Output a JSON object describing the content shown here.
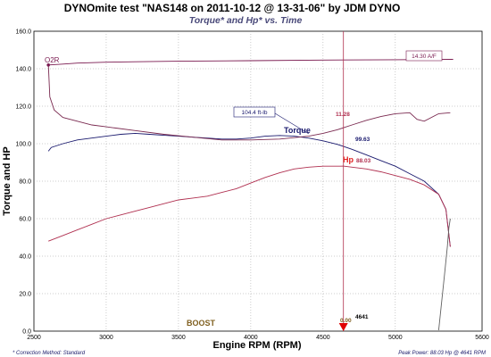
{
  "chart_data": {
    "type": "line",
    "title": "DYNOmite test \"NAS148 on 2011-10-12 @ 13-31-06\" by JDM DYNO",
    "subtitle": "Torque* and Hp* vs. Time",
    "xlabel": "Engine RPM (RPM)",
    "ylabel": "Torque and HP",
    "xlim": [
      2500,
      5600
    ],
    "ylim": [
      0,
      160
    ],
    "x_ticks": [
      "2500",
      "3000",
      "3500",
      "4000",
      "4500",
      "5000",
      "5600"
    ],
    "y_ticks": [
      "0.0",
      "20.0",
      "40.0",
      "60.0",
      "80.0",
      "100.0",
      "120.0",
      "140.0",
      "160.0"
    ],
    "grid": true,
    "series": [
      {
        "name": "Torque",
        "color": "#1a1a6e",
        "x": [
          2600,
          2620,
          2700,
          2800,
          2900,
          3000,
          3100,
          3200,
          3300,
          3400,
          3500,
          3600,
          3700,
          3800,
          3900,
          4000,
          4100,
          4200,
          4300,
          4400,
          4500,
          4600,
          4700,
          4800,
          4900,
          5000,
          5100,
          5200,
          5300,
          5350,
          5380
        ],
        "values": [
          96,
          98,
          100,
          102,
          103,
          104,
          105,
          105.5,
          105,
          104.5,
          104,
          103.5,
          103,
          102.5,
          102.5,
          103,
          104,
          104.4,
          104,
          103,
          101.5,
          99.6,
          97,
          94,
          91,
          88,
          84,
          80,
          73,
          65,
          45
        ]
      },
      {
        "name": "Hp",
        "color": "#b03050",
        "x": [
          2600,
          2700,
          2800,
          2900,
          3000,
          3100,
          3200,
          3300,
          3400,
          3500,
          3600,
          3700,
          3800,
          3900,
          4000,
          4100,
          4200,
          4300,
          4400,
          4500,
          4600,
          4640,
          4700,
          4800,
          4900,
          5000,
          5100,
          5200,
          5300,
          5350,
          5380
        ],
        "values": [
          48,
          51,
          54,
          57,
          60,
          62,
          64,
          66,
          68,
          70,
          71,
          72,
          74,
          76,
          79,
          82,
          84.5,
          86.5,
          87.5,
          88,
          88,
          88.03,
          87.5,
          86.5,
          85,
          83,
          81,
          78,
          73,
          65,
          45
        ]
      },
      {
        "name": "O2R",
        "color": "#7a1a50",
        "x": [
          2600,
          2700,
          2800,
          3000,
          3200,
          3500,
          4000,
          4500,
          5000,
          5400
        ],
        "values": [
          142,
          142.5,
          143,
          143.5,
          143.7,
          144,
          144.3,
          144.6,
          144.8,
          145
        ]
      },
      {
        "color": "#7a2a50",
        "x": [
          2600,
          2610,
          2640,
          2700,
          2800,
          2900,
          3000,
          3200,
          3400,
          3600,
          3800,
          4000,
          4200,
          4400,
          4500,
          4600,
          4640,
          4700,
          4800,
          4900,
          5000,
          5100,
          5150,
          5200,
          5300,
          5380
        ],
        "values": [
          142,
          125,
          118,
          114,
          112,
          110,
          109,
          107,
          105,
          103.5,
          102,
          102,
          102.5,
          104,
          105.5,
          107.5,
          108.5,
          110,
          112.5,
          114.5,
          116,
          116.5,
          113,
          112,
          116,
          116.5
        ]
      },
      {
        "color": "#606060",
        "x": [
          5300,
          5340,
          5360,
          5370,
          5380
        ],
        "values": [
          0.5,
          30,
          45,
          55,
          60
        ]
      }
    ],
    "annotations": [
      {
        "text": "14.30 A/F",
        "color": "#7a1a50"
      },
      {
        "text": "104.4 ft-lb",
        "color": "#1a1a6e"
      },
      {
        "text": "11.28",
        "color": "#b03050"
      },
      {
        "text": "99.63",
        "color": "#1a1a6e"
      },
      {
        "text": "88.03",
        "color": "#b03050"
      },
      {
        "text": "0.00",
        "color": "#806020"
      },
      {
        "text": "4641",
        "color": "#000000"
      }
    ],
    "labels": {
      "o2r": "O2R",
      "torque": "Torque",
      "hp": "Hp",
      "boost": "BOOST"
    },
    "cursor_rpm": 4641
  },
  "footer": {
    "left": "* Correction Method: Standard",
    "right": "Peak Power: 88.03 Hp @ 4641 RPM"
  }
}
